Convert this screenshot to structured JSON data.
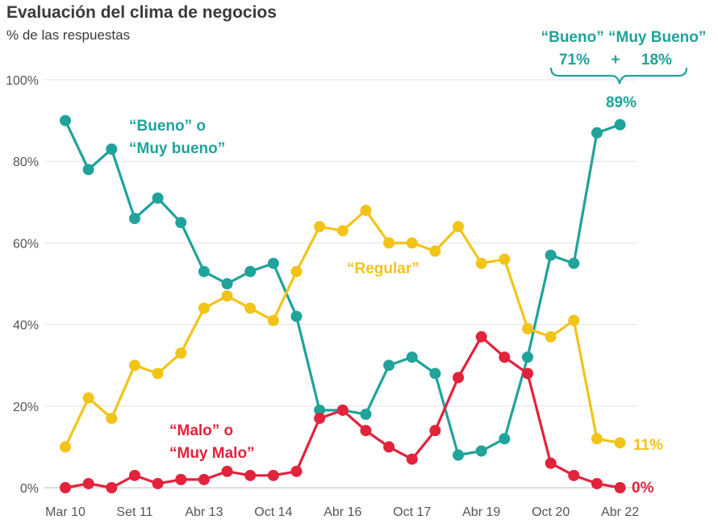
{
  "title": "Evaluación del clima de negocios",
  "subtitle": "% de las respuestas",
  "chart_data": {
    "type": "line",
    "ylim": [
      0,
      100
    ],
    "yticks": [
      "0%",
      "20%",
      "40%",
      "60%",
      "80%",
      "100%"
    ],
    "ytick_values": [
      0,
      20,
      40,
      60,
      80,
      100
    ],
    "xtick_labels": [
      "Mar 10",
      "Set 11",
      "Abr 13",
      "Oct 14",
      "Abr 16",
      "Oct 17",
      "Abr 19",
      "Oct 20",
      "Abr 22"
    ],
    "xtick_positions": [
      0,
      3,
      6,
      9,
      12,
      15,
      18,
      21,
      24
    ],
    "grid": true,
    "series": [
      {
        "key": "bueno",
        "color": "#1fa39a",
        "values": [
          90,
          78,
          83,
          66,
          71,
          65,
          53,
          50,
          53,
          55,
          42,
          19,
          19,
          18,
          30,
          32,
          28,
          8,
          9,
          12,
          32,
          57,
          55,
          87,
          89
        ]
      },
      {
        "key": "regular",
        "color": "#f2c418",
        "values": [
          10,
          22,
          17,
          30,
          28,
          33,
          44,
          47,
          44,
          41,
          53,
          64,
          63,
          68,
          60,
          60,
          58,
          64,
          55,
          56,
          39,
          37,
          41,
          12,
          11
        ]
      },
      {
        "key": "malo",
        "color": "#e3223b",
        "values": [
          0,
          1,
          0,
          3,
          1,
          2,
          2,
          4,
          3,
          3,
          4,
          17,
          19,
          14,
          10,
          7,
          14,
          27,
          37,
          32,
          28,
          6,
          3,
          1,
          0
        ]
      }
    ],
    "annotations": {
      "bueno_label": [
        "“Bueno” o",
        "“Muy bueno”"
      ],
      "regular_label": "“Regular”",
      "malo_label": [
        "“Malo” o",
        "“Muy Malo”"
      ],
      "end_bueno": "89%",
      "end_regular": "11%",
      "end_malo": "0%",
      "split_header": "“Bueno” “Muy Bueno”",
      "split_values": "71%     +     18%"
    }
  }
}
